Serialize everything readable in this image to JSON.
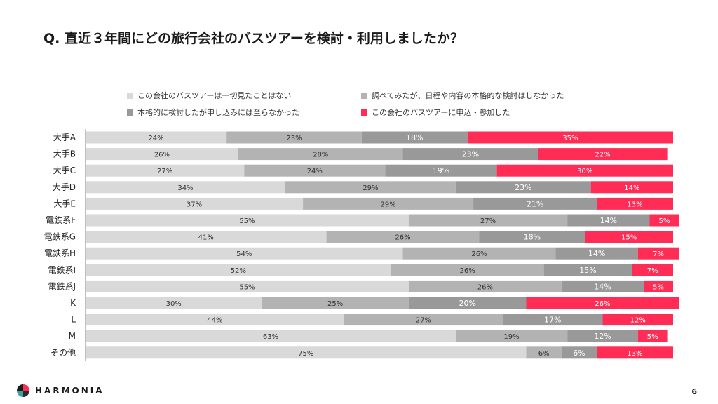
{
  "header": {
    "title": "Q. 直近３年間にどの旅行会社のバスツアーを検討・利用しましたか？"
  },
  "footer": {
    "brand": "HARMONIA",
    "page_number": "6"
  },
  "chart_data": {
    "type": "bar",
    "orientation": "horizontal",
    "stacked": "percent",
    "categories": [
      "大手A",
      "大手B",
      "大手C",
      "大手D",
      "大手E",
      "電鉄系F",
      "電鉄系G",
      "電鉄系H",
      "電鉄系I",
      "電鉄系J",
      "K",
      "L",
      "M",
      "その他"
    ],
    "series": [
      {
        "name": "この会社のバスツアーは一切見たことはない",
        "color": "#d9d9d9",
        "label_color": "#333333",
        "values": [
          24,
          26,
          27,
          34,
          37,
          55,
          41,
          54,
          52,
          55,
          30,
          44,
          63,
          75
        ]
      },
      {
        "name": "調べてみたが、日程や内容の本格的な検討はしなかった",
        "color": "#b3b3b3",
        "label_color": "#333333",
        "values": [
          23,
          28,
          24,
          29,
          29,
          27,
          26,
          26,
          26,
          26,
          25,
          27,
          19,
          6
        ]
      },
      {
        "name": "本格的に検討したが申し込みには至らなかった",
        "color": "#999999",
        "label_color": "#ffffff",
        "values": [
          18,
          23,
          19,
          23,
          21,
          14,
          18,
          14,
          15,
          14,
          20,
          17,
          12,
          6
        ]
      },
      {
        "name": "この会社のバスツアーに申込・参加した",
        "color": "#ff2d55",
        "label_color": "#ffffff",
        "values": [
          35,
          22,
          30,
          14,
          13,
          5,
          15,
          7,
          7,
          5,
          26,
          12,
          5,
          13
        ]
      }
    ],
    "value_suffix": "%",
    "xlim": [
      0,
      100
    ],
    "legend_position": "top"
  }
}
